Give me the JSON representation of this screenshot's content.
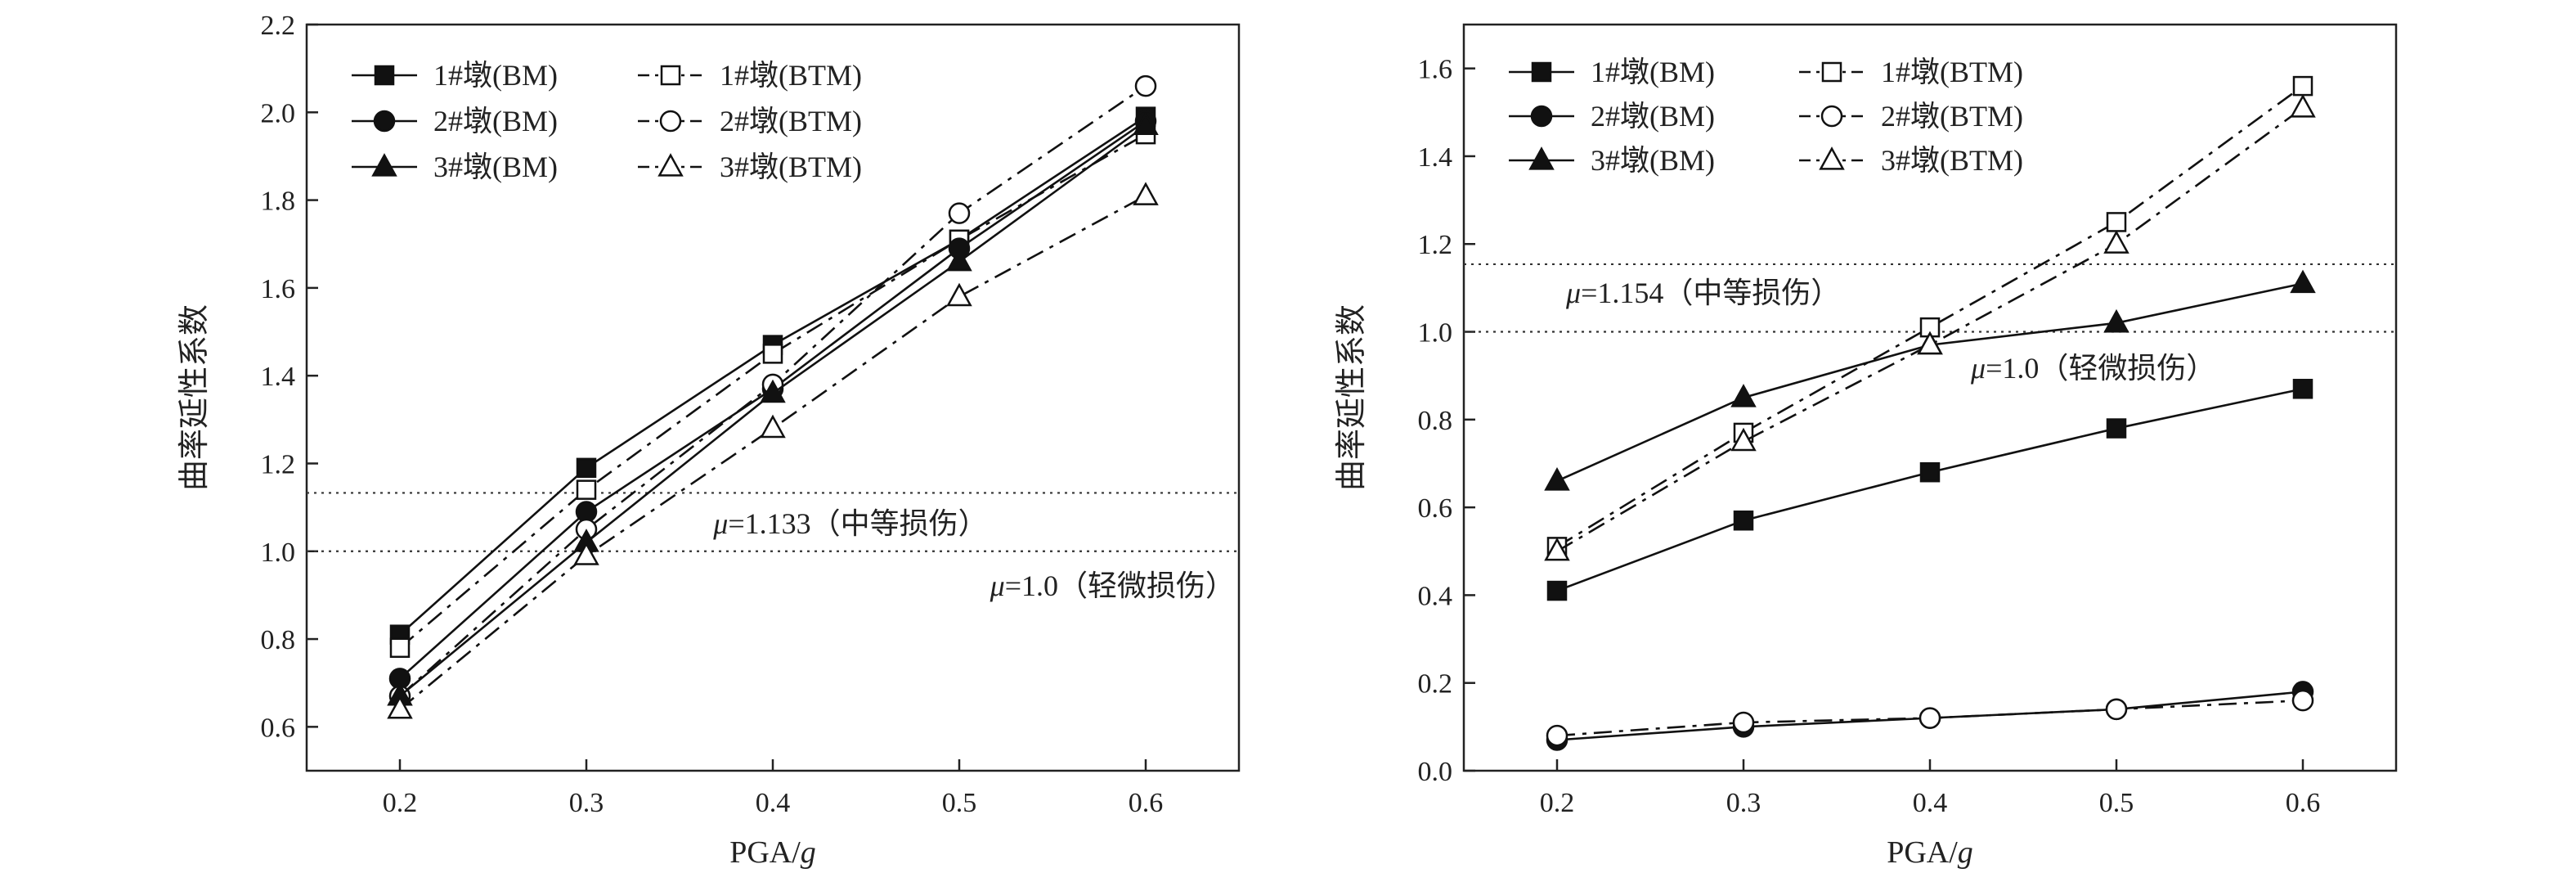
{
  "chart_data": [
    {
      "type": "line",
      "xlabel": "PGA/g",
      "ylabel": "曲率延性系数",
      "x": [
        0.2,
        0.3,
        0.4,
        0.5,
        0.6
      ],
      "xticks": [
        "0.2",
        "0.3",
        "0.4",
        "0.5",
        "0.6"
      ],
      "xlim": [
        0.15,
        0.65
      ],
      "ylim": [
        0.5,
        2.2
      ],
      "yticks": [
        0.6,
        0.8,
        1.0,
        1.2,
        1.4,
        1.6,
        1.8,
        2.0,
        2.2
      ],
      "ytick_labels": [
        "0.6",
        "0.8",
        "1.0",
        "1.2",
        "1.4",
        "1.6",
        "1.8",
        "2.0",
        "2.2"
      ],
      "legend_position": "top-left",
      "series": [
        {
          "name": "1#墩(BM)",
          "marker": "square",
          "filled": true,
          "dash": "solid",
          "values": [
            0.81,
            1.19,
            1.47,
            1.71,
            1.99
          ]
        },
        {
          "name": "1#墩(BTM)",
          "marker": "square",
          "filled": false,
          "dash": "dashdot",
          "values": [
            0.78,
            1.14,
            1.45,
            1.71,
            1.95
          ]
        },
        {
          "name": "2#墩(BM)",
          "marker": "circle",
          "filled": true,
          "dash": "solid",
          "values": [
            0.71,
            1.09,
            1.37,
            1.69,
            1.98
          ]
        },
        {
          "name": "2#墩(BTM)",
          "marker": "circle",
          "filled": false,
          "dash": "dashdot",
          "values": [
            0.67,
            1.05,
            1.38,
            1.77,
            2.06
          ]
        },
        {
          "name": "3#墩(BM)",
          "marker": "triangle",
          "filled": true,
          "dash": "solid",
          "values": [
            0.67,
            1.02,
            1.36,
            1.66,
            1.97
          ]
        },
        {
          "name": "3#墩(BTM)",
          "marker": "triangle",
          "filled": false,
          "dash": "dashdot",
          "values": [
            0.64,
            0.99,
            1.28,
            1.58,
            1.81
          ]
        }
      ],
      "hlines": [
        {
          "y": 1.133,
          "mu": "μ",
          "label": "=1.133（中等损伤）",
          "position": "below-center"
        },
        {
          "y": 1.0,
          "mu": "μ",
          "label": "=1.0（轻微损伤）",
          "position": "below-right"
        }
      ]
    },
    {
      "type": "line",
      "xlabel": "PGA/g",
      "ylabel": "曲率延性系数",
      "x": [
        0.2,
        0.3,
        0.4,
        0.5,
        0.6
      ],
      "xticks": [
        "0.2",
        "0.3",
        "0.4",
        "0.5",
        "0.6"
      ],
      "xlim": [
        0.15,
        0.65
      ],
      "ylim": [
        0.0,
        1.7
      ],
      "yticks": [
        0.0,
        0.2,
        0.4,
        0.6,
        0.8,
        1.0,
        1.2,
        1.4,
        1.6
      ],
      "ytick_labels": [
        "0.0",
        "0.2",
        "0.4",
        "0.6",
        "0.8",
        "1.0",
        "1.2",
        "1.4",
        "1.6"
      ],
      "legend_position": "top-left",
      "series": [
        {
          "name": "1#墩(BM)",
          "marker": "square",
          "filled": true,
          "dash": "solid",
          "values": [
            0.41,
            0.57,
            0.68,
            0.78,
            0.87
          ]
        },
        {
          "name": "1#墩(BTM)",
          "marker": "square",
          "filled": false,
          "dash": "dashdot",
          "values": [
            0.51,
            0.77,
            1.01,
            1.25,
            1.56
          ]
        },
        {
          "name": "2#墩(BM)",
          "marker": "circle",
          "filled": true,
          "dash": "solid",
          "values": [
            0.07,
            0.1,
            0.12,
            0.14,
            0.18
          ]
        },
        {
          "name": "2#墩(BTM)",
          "marker": "circle",
          "filled": false,
          "dash": "dashdot",
          "values": [
            0.08,
            0.11,
            0.12,
            0.14,
            0.16
          ]
        },
        {
          "name": "3#墩(BM)",
          "marker": "triangle",
          "filled": true,
          "dash": "solid",
          "values": [
            0.66,
            0.85,
            0.97,
            1.02,
            1.11
          ]
        },
        {
          "name": "3#墩(BTM)",
          "marker": "triangle",
          "filled": false,
          "dash": "dashdot",
          "values": [
            0.5,
            0.75,
            0.97,
            1.2,
            1.51
          ]
        }
      ],
      "hlines": [
        {
          "y": 1.154,
          "mu": "μ",
          "label": "=1.154（中等损伤）",
          "position": "below-left"
        },
        {
          "y": 1.0,
          "mu": "μ",
          "label": "=1.0（轻微损伤）",
          "position": "below-center-right"
        }
      ]
    }
  ]
}
